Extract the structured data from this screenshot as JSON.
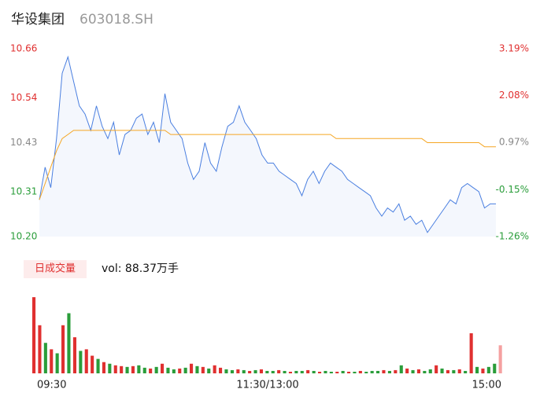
{
  "chart_data": [
    {
      "type": "line",
      "title": "华设集团",
      "subtitle": "603018.SH",
      "x": [
        0,
        3,
        6,
        9,
        12,
        15,
        18,
        21,
        24,
        27,
        30,
        33,
        36,
        39,
        42,
        45,
        48,
        51,
        54,
        57,
        60,
        63,
        66,
        69,
        72,
        75,
        78,
        81,
        84,
        87,
        90,
        93,
        96,
        99,
        102,
        105,
        108,
        111,
        114,
        117,
        120,
        123,
        126,
        129,
        132,
        135,
        138,
        141,
        144,
        147,
        150,
        153,
        156,
        159,
        162,
        165,
        168,
        171,
        174,
        177,
        180,
        183,
        186,
        189,
        192,
        195,
        198,
        201,
        204,
        207,
        210,
        213,
        216,
        219,
        222,
        225,
        228,
        231,
        234,
        237,
        240
      ],
      "series": [
        {
          "name": "price",
          "color": "#4a7fe0",
          "area_color": "#f4f7fd",
          "values": [
            10.29,
            10.37,
            10.32,
            10.44,
            10.6,
            10.64,
            10.58,
            10.52,
            10.5,
            10.46,
            10.52,
            10.47,
            10.44,
            10.48,
            10.4,
            10.45,
            10.46,
            10.49,
            10.5,
            10.45,
            10.48,
            10.43,
            10.55,
            10.48,
            10.46,
            10.44,
            10.38,
            10.34,
            10.36,
            10.43,
            10.38,
            10.36,
            10.42,
            10.47,
            10.48,
            10.52,
            10.48,
            10.46,
            10.44,
            10.4,
            10.38,
            10.38,
            10.36,
            10.35,
            10.34,
            10.33,
            10.3,
            10.34,
            10.36,
            10.33,
            10.36,
            10.38,
            10.37,
            10.36,
            10.34,
            10.33,
            10.32,
            10.31,
            10.3,
            10.27,
            10.25,
            10.27,
            10.26,
            10.28,
            10.24,
            10.25,
            10.23,
            10.24,
            10.21,
            10.23,
            10.25,
            10.27,
            10.29,
            10.28,
            10.32,
            10.33,
            10.32,
            10.31,
            10.27,
            10.28,
            10.28
          ]
        },
        {
          "name": "average",
          "color": "#f5a623",
          "values": [
            10.29,
            10.33,
            10.37,
            10.41,
            10.44,
            10.45,
            10.46,
            10.46,
            10.46,
            10.46,
            10.46,
            10.46,
            10.46,
            10.46,
            10.46,
            10.46,
            10.46,
            10.46,
            10.46,
            10.46,
            10.46,
            10.46,
            10.46,
            10.45,
            10.45,
            10.45,
            10.45,
            10.45,
            10.45,
            10.45,
            10.45,
            10.45,
            10.45,
            10.45,
            10.45,
            10.45,
            10.45,
            10.45,
            10.45,
            10.45,
            10.45,
            10.45,
            10.45,
            10.45,
            10.45,
            10.45,
            10.45,
            10.45,
            10.45,
            10.45,
            10.45,
            10.45,
            10.44,
            10.44,
            10.44,
            10.44,
            10.44,
            10.44,
            10.44,
            10.44,
            10.44,
            10.44,
            10.44,
            10.44,
            10.44,
            10.44,
            10.44,
            10.44,
            10.43,
            10.43,
            10.43,
            10.43,
            10.43,
            10.43,
            10.43,
            10.43,
            10.43,
            10.43,
            10.42,
            10.42,
            10.42
          ]
        }
      ],
      "xlim": [
        0,
        240
      ],
      "xticks": [
        {
          "value": 0,
          "label": "09:30"
        },
        {
          "value": 120,
          "label": "11:30/13:00"
        },
        {
          "value": 240,
          "label": "15:00"
        }
      ],
      "ylim": [
        10.2,
        10.66
      ],
      "yticks": [
        10.66,
        10.54,
        10.43,
        10.31,
        10.2
      ],
      "ytick_labels": [
        "10.66",
        "10.54",
        "10.43",
        "10.31",
        "10.20"
      ],
      "ytick_colors": [
        "#e03030",
        "#e03030",
        "#888888",
        "#2a9d3a",
        "#2a9d3a"
      ],
      "y2lim": [
        -1.26,
        3.19
      ],
      "y2ticks": [
        {
          "value": 3.19,
          "label": "3.19%"
        },
        {
          "value": 2.08,
          "label": "2.08%"
        },
        {
          "value": 0.97,
          "label": "0.97%"
        },
        {
          "value": -0.15,
          "label": "-0.15%"
        },
        {
          "value": -1.26,
          "label": "-1.26%"
        }
      ],
      "grid": false
    },
    {
      "type": "bar",
      "title": "日成交量",
      "annotation": "vol: 88.37万手",
      "ylim": [
        0,
        100
      ],
      "values": [
        95,
        60,
        38,
        30,
        25,
        60,
        75,
        45,
        28,
        30,
        22,
        18,
        14,
        12,
        10,
        9,
        8,
        9,
        10,
        7,
        6,
        8,
        12,
        7,
        5,
        6,
        7,
        12,
        9,
        8,
        6,
        10,
        7,
        5,
        4,
        5,
        4,
        3,
        4,
        5,
        3,
        3,
        4,
        3,
        2,
        3,
        3,
        4,
        3,
        2,
        3,
        2,
        2,
        3,
        2,
        2,
        3,
        2,
        3,
        3,
        4,
        3,
        4,
        10,
        6,
        4,
        5,
        3,
        5,
        10,
        6,
        4,
        4,
        5,
        3,
        50,
        8,
        6,
        8,
        12,
        35
      ],
      "colors": [
        "#e03030",
        "#e03030",
        "#2a9d3a",
        "#e03030",
        "#2a9d3a",
        "#e03030",
        "#2a9d3a",
        "#e03030",
        "#2a9d3a",
        "#e03030",
        "#e03030",
        "#2a9d3a",
        "#e03030",
        "#2a9d3a",
        "#e03030",
        "#e03030",
        "#2a9d3a",
        "#e03030",
        "#2a9d3a",
        "#2a9d3a",
        "#e03030",
        "#2a9d3a",
        "#e03030",
        "#2a9d3a",
        "#2a9d3a",
        "#e03030",
        "#2a9d3a",
        "#e03030",
        "#2a9d3a",
        "#e03030",
        "#2a9d3a",
        "#e03030",
        "#e03030",
        "#2a9d3a",
        "#2a9d3a",
        "#e03030",
        "#2a9d3a",
        "#e03030",
        "#2a9d3a",
        "#e03030",
        "#2a9d3a",
        "#2a9d3a",
        "#e03030",
        "#2a9d3a",
        "#e03030",
        "#2a9d3a",
        "#2a9d3a",
        "#e03030",
        "#2a9d3a",
        "#e03030",
        "#2a9d3a",
        "#2a9d3a",
        "#e03030",
        "#2a9d3a",
        "#e03030",
        "#2a9d3a",
        "#e03030",
        "#2a9d3a",
        "#2a9d3a",
        "#2a9d3a",
        "#e03030",
        "#2a9d3a",
        "#e03030",
        "#2a9d3a",
        "#e03030",
        "#2a9d3a",
        "#e03030",
        "#2a9d3a",
        "#2a9d3a",
        "#e03030",
        "#2a9d3a",
        "#e03030",
        "#2a9d3a",
        "#e03030",
        "#2a9d3a",
        "#e03030",
        "#2a9d3a",
        "#e03030",
        "#2a9d3a",
        "#2a9d3a",
        "#f5a0a0"
      ]
    }
  ]
}
